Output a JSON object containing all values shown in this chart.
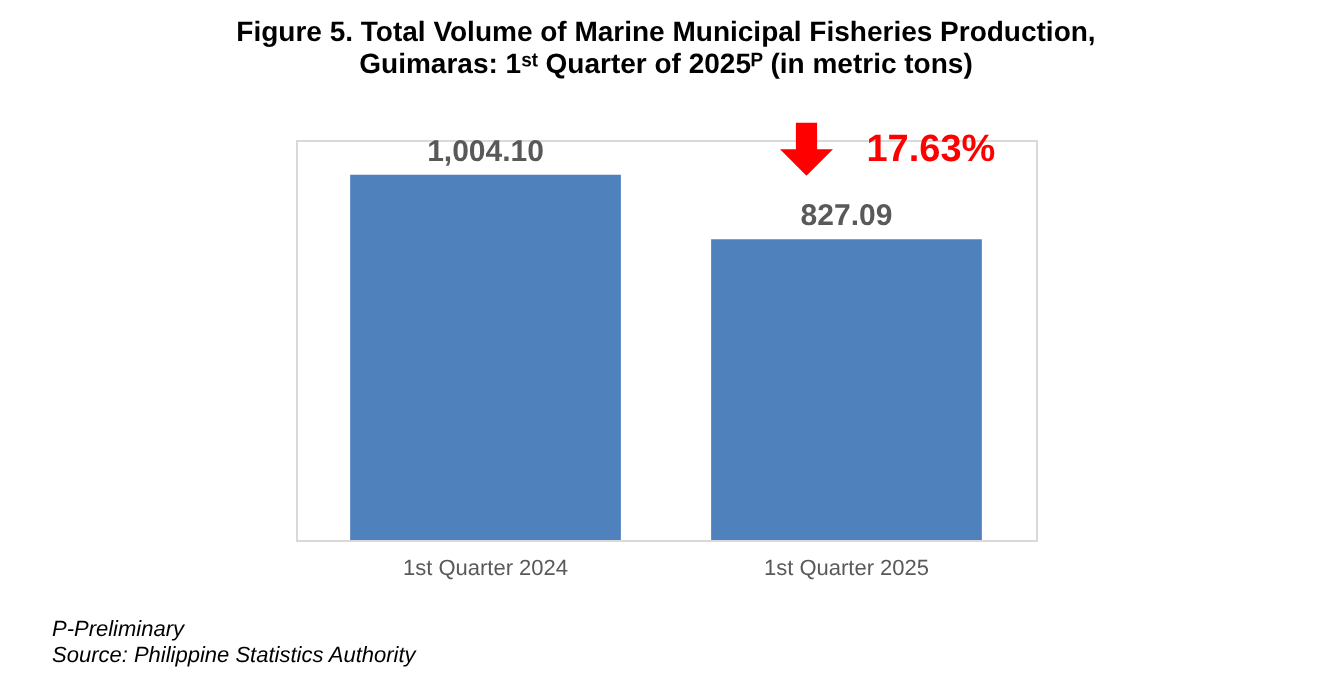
{
  "chart_data": {
    "type": "bar",
    "title": "Figure 5. Total Volume of Marine Municipal Fisheries Production, Guimaras: 1ˢᵗ Quarter of 2025ᴾ (in metric tons)",
    "categories": [
      "1st Quarter 2024",
      "1st Quarter 2025"
    ],
    "values": [
      1004.1,
      827.09
    ],
    "value_labels": [
      "1,004.10",
      "827.09"
    ],
    "color": "#4f81bd",
    "annotations": [
      {
        "text": "17.63%",
        "x": "1st Quarter 2025",
        "y": 827.09
      },
      "P-Preliminary",
      "Source: Philippine Statistics Authority"
    ]
  }
}
